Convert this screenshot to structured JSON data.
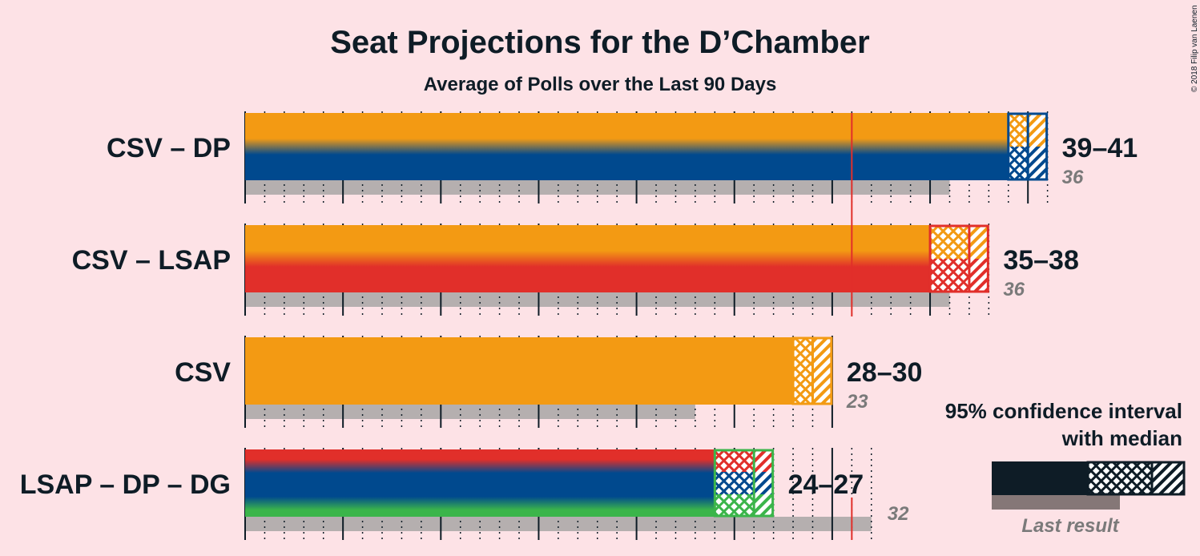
{
  "header": {
    "title": "Seat Projections for the D’Chamber",
    "subtitle": "Average of Polls over the Last 90 Days"
  },
  "copyright": "© 2018 Filip van Laenen",
  "legend": {
    "ci_line1": "95% confidence interval",
    "ci_line2": "with median",
    "last_result": "Last result"
  },
  "colors": {
    "background": "#FDE2E6",
    "CSV": "#F39A13",
    "DP": "#00498E",
    "LSAP": "#E12F2A",
    "DG": "#3BB54A",
    "last_result": "#B5AFAF",
    "majority_line": "#E12F2A",
    "legend_dark": "#0E1C26",
    "legend_last": "#857777"
  },
  "chart_data": {
    "type": "bar",
    "orientation": "horizontal",
    "x_range": [
      0,
      41
    ],
    "majority": 31,
    "categories": [
      "CSV – DP",
      "CSV – LSAP",
      "CSV",
      "LSAP – DP – DG"
    ],
    "rows": [
      {
        "label": "CSV – DP",
        "parties": [
          "CSV",
          "DP"
        ],
        "ci_low": 39,
        "median": 40,
        "ci_high": 41,
        "range_label": "39–41",
        "last_result": 36,
        "last_label": "36"
      },
      {
        "label": "CSV – LSAP",
        "parties": [
          "CSV",
          "LSAP"
        ],
        "ci_low": 35,
        "median": 37,
        "ci_high": 38,
        "range_label": "35–38",
        "last_result": 36,
        "last_label": "36"
      },
      {
        "label": "CSV",
        "parties": [
          "CSV"
        ],
        "ci_low": 28,
        "median": 29,
        "ci_high": 30,
        "range_label": "28–30",
        "last_result": 23,
        "last_label": "23"
      },
      {
        "label": "LSAP – DP – DG",
        "parties": [
          "LSAP",
          "DP",
          "DG"
        ],
        "ci_low": 24,
        "median": 26,
        "ci_high": 27,
        "range_label": "24–27",
        "last_result": 32,
        "last_label": "32"
      }
    ]
  }
}
